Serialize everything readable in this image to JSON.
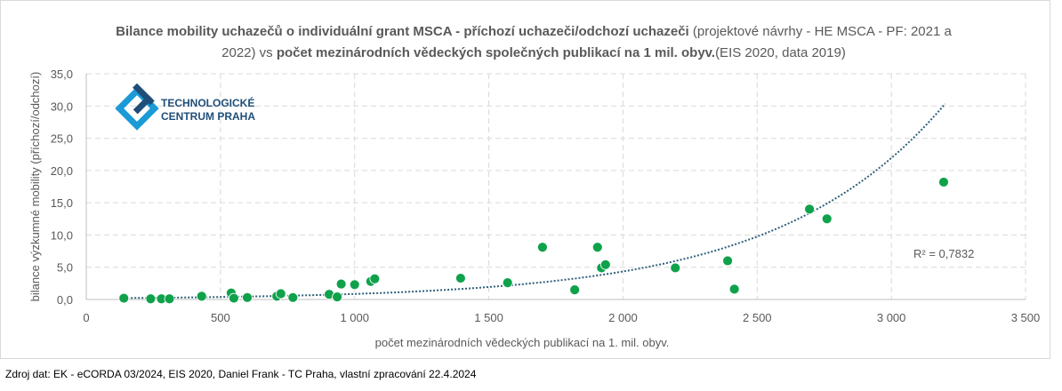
{
  "title": {
    "part1_bold": "Bilance mobility uchazečů o individuální grant MSCA - příchozí uchazeči/odchozí uchazeči",
    "part2": " (projektové návrhy - HE MSCA - PF: 2021 a 2022) vs ",
    "part3_bold": "počet mezinárodních vědeckých společných publikací na 1 mil. obyv.",
    "part4": "(EIS 2020, data 2019)"
  },
  "logo": {
    "line1": "TECHNOLOGICKÉ",
    "line2": "CENTRUM PRAHA",
    "colors": [
      "#1a9ad6",
      "#1f4e79"
    ]
  },
  "source": "Zdroj dat: EK - eCORDA 03/2024, EIS 2020, Daniel Frank - TC Praha, vlastní zpracování 22.4.2024",
  "chart_data": {
    "type": "scatter",
    "xlabel": "počet mezinárodních vědeckých publikací na 1. mil. obyv.",
    "ylabel": "bilance výzkumné mobility (příchozí/odchozí)",
    "xlim": [
      0,
      3500
    ],
    "ylim": [
      0,
      35
    ],
    "xticks": [
      0,
      500,
      1000,
      1500,
      2000,
      2500,
      3000,
      3500
    ],
    "xtick_labels": [
      "0",
      "500",
      "1 000",
      "1 500",
      "2 000",
      "2 500",
      "3 000",
      "3 500"
    ],
    "yticks": [
      0,
      5,
      10,
      15,
      20,
      25,
      30,
      35
    ],
    "ytick_labels": [
      "0,0",
      "5,0",
      "10,0",
      "15,0",
      "20,0",
      "25,0",
      "30,0",
      "35,0"
    ],
    "grid": true,
    "marker_color": "#0fa24b",
    "trendline": {
      "type": "exponential",
      "a": 0.17,
      "b": 0.00162,
      "x_range": [
        140,
        3200
      ],
      "color": "#2e5f7a",
      "label": "R² = 0,7832"
    },
    "points": [
      [
        140,
        0.2
      ],
      [
        240,
        0.1
      ],
      [
        280,
        0.1
      ],
      [
        310,
        0.1
      ],
      [
        430,
        0.5
      ],
      [
        540,
        1.0
      ],
      [
        550,
        0.2
      ],
      [
        600,
        0.3
      ],
      [
        710,
        0.5
      ],
      [
        725,
        0.9
      ],
      [
        770,
        0.3
      ],
      [
        905,
        0.8
      ],
      [
        935,
        0.4
      ],
      [
        950,
        2.4
      ],
      [
        1000,
        2.3
      ],
      [
        1060,
        2.8
      ],
      [
        1075,
        3.2
      ],
      [
        1395,
        3.3
      ],
      [
        1570,
        2.6
      ],
      [
        1700,
        8.1
      ],
      [
        1820,
        1.5
      ],
      [
        1905,
        8.1
      ],
      [
        1920,
        4.9
      ],
      [
        1935,
        5.4
      ],
      [
        2195,
        4.9
      ],
      [
        2390,
        6.0
      ],
      [
        2415,
        1.6
      ],
      [
        2695,
        14.0
      ],
      [
        2760,
        12.5
      ],
      [
        3195,
        18.2
      ]
    ]
  }
}
